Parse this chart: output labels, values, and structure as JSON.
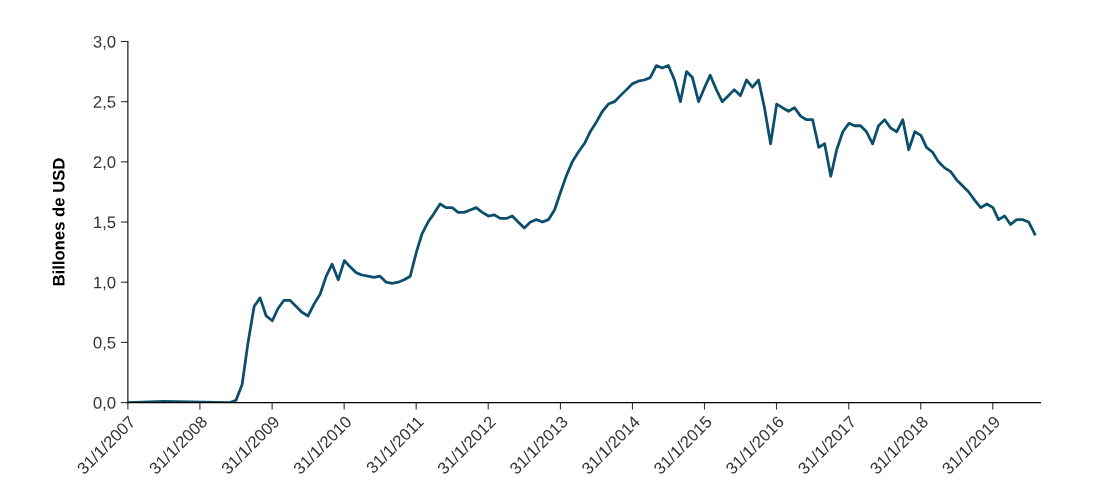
{
  "chart_data": {
    "type": "line",
    "ylabel": "Billones de USD",
    "grid": false,
    "marker": "none",
    "line_style": "solid",
    "xlim": [
      "2007-01-31",
      "2019-09-30"
    ],
    "ylim": [
      0,
      3.0
    ],
    "xticks": [
      {
        "value": "2007-01-31",
        "label": "31/1/2007"
      },
      {
        "value": "2008-01-31",
        "label": "31/1/2008"
      },
      {
        "value": "2009-01-31",
        "label": "31/1/2009"
      },
      {
        "value": "2010-01-31",
        "label": "31/1/2010"
      },
      {
        "value": "2011-01-31",
        "label": "31/1/2011"
      },
      {
        "value": "2012-01-31",
        "label": "31/1/2012"
      },
      {
        "value": "2013-01-31",
        "label": "31/1/2013"
      },
      {
        "value": "2014-01-31",
        "label": "31/1/2014"
      },
      {
        "value": "2015-01-31",
        "label": "31/1/2015"
      },
      {
        "value": "2016-01-31",
        "label": "31/1/2016"
      },
      {
        "value": "2017-01-31",
        "label": "31/1/2017"
      },
      {
        "value": "2018-01-31",
        "label": "31/1/2018"
      },
      {
        "value": "2019-01-31",
        "label": "31/1/2019"
      }
    ],
    "yticks": [
      {
        "value": 0,
        "label": "0,0"
      },
      {
        "value": 0.5,
        "label": "0,5"
      },
      {
        "value": 1.0,
        "label": "1,0"
      },
      {
        "value": 1.5,
        "label": "1,5"
      },
      {
        "value": 2.0,
        "label": "2,0"
      },
      {
        "value": 2.5,
        "label": "2,5"
      },
      {
        "value": 3.0,
        "label": "3,0"
      }
    ],
    "x": [
      "2007-01-31",
      "2007-08",
      "2008-07",
      "2008-08",
      "2008-09",
      "2008-10",
      "2008-11",
      "2008-12",
      "2009-01",
      "2009-02",
      "2009-03",
      "2009-04",
      "2009-05",
      "2009-06",
      "2009-07",
      "2009-08",
      "2009-09",
      "2009-10",
      "2009-11",
      "2009-12",
      "2010-01",
      "2010-02",
      "2010-03",
      "2010-04",
      "2010-05",
      "2010-06",
      "2010-07",
      "2010-08",
      "2010-09",
      "2010-10",
      "2010-11",
      "2010-12",
      "2011-01",
      "2011-02",
      "2011-03",
      "2011-04",
      "2011-05",
      "2011-06",
      "2011-07",
      "2011-08",
      "2011-09",
      "2011-10",
      "2011-11",
      "2011-12",
      "2012-01",
      "2012-02",
      "2012-03",
      "2012-04",
      "2012-05",
      "2012-06",
      "2012-07",
      "2012-08",
      "2012-09",
      "2012-10",
      "2012-11",
      "2012-12",
      "2013-01",
      "2013-02",
      "2013-03",
      "2013-04",
      "2013-05",
      "2013-06",
      "2013-07",
      "2013-08",
      "2013-09",
      "2013-10",
      "2013-11",
      "2013-12",
      "2014-01",
      "2014-02",
      "2014-03",
      "2014-04",
      "2014-05",
      "2014-06",
      "2014-07",
      "2014-08",
      "2014-09",
      "2014-10",
      "2014-11",
      "2014-12",
      "2015-01",
      "2015-02",
      "2015-03",
      "2015-04",
      "2015-05",
      "2015-06",
      "2015-07",
      "2015-08",
      "2015-09",
      "2015-10",
      "2015-11",
      "2015-12",
      "2016-01",
      "2016-02",
      "2016-03",
      "2016-04",
      "2016-05",
      "2016-06",
      "2016-07",
      "2016-08",
      "2016-09",
      "2016-10",
      "2016-11",
      "2016-12",
      "2017-01",
      "2017-02",
      "2017-03",
      "2017-04",
      "2017-05",
      "2017-06",
      "2017-07",
      "2017-08",
      "2017-09",
      "2017-10",
      "2017-11",
      "2017-12",
      "2018-01",
      "2018-02",
      "2018-03",
      "2018-04",
      "2018-05",
      "2018-06",
      "2018-07",
      "2018-08",
      "2018-09",
      "2018-10",
      "2018-11",
      "2018-12",
      "2019-01",
      "2019-02",
      "2019-03",
      "2019-04",
      "2019-05",
      "2019-06",
      "2019-07",
      "2019-08",
      "2019-09"
    ],
    "series": [
      {
        "color": "#0b4f6c",
        "values": [
          0,
          0.01,
          0,
          0.02,
          0.15,
          0.5,
          0.8,
          0.87,
          0.72,
          0.68,
          0.78,
          0.85,
          0.85,
          0.8,
          0.75,
          0.72,
          0.82,
          0.9,
          1.05,
          1.15,
          1.02,
          1.18,
          1.13,
          1.08,
          1.06,
          1.05,
          1.04,
          1.05,
          1.0,
          0.99,
          1.0,
          1.02,
          1.05,
          1.25,
          1.4,
          1.5,
          1.57,
          1.65,
          1.62,
          1.62,
          1.58,
          1.58,
          1.6,
          1.62,
          1.58,
          1.55,
          1.56,
          1.53,
          1.53,
          1.55,
          1.5,
          1.45,
          1.5,
          1.52,
          1.5,
          1.52,
          1.6,
          1.75,
          1.88,
          2.0,
          2.08,
          2.15,
          2.25,
          2.33,
          2.42,
          2.48,
          2.5,
          2.55,
          2.6,
          2.65,
          2.67,
          2.68,
          2.7,
          2.8,
          2.78,
          2.8,
          2.68,
          2.5,
          2.75,
          2.7,
          2.5,
          2.62,
          2.72,
          2.6,
          2.5,
          2.55,
          2.6,
          2.55,
          2.68,
          2.62,
          2.68,
          2.45,
          2.15,
          2.48,
          2.45,
          2.42,
          2.45,
          2.38,
          2.35,
          2.35,
          2.12,
          2.15,
          1.88,
          2.1,
          2.25,
          2.32,
          2.3,
          2.3,
          2.25,
          2.15,
          2.3,
          2.35,
          2.28,
          2.25,
          2.35,
          2.1,
          2.25,
          2.22,
          2.12,
          2.08,
          2.0,
          1.95,
          1.92,
          1.85,
          1.8,
          1.75,
          1.68,
          1.62,
          1.65,
          1.62,
          1.52,
          1.55,
          1.48,
          1.52,
          1.52,
          1.5,
          1.4
        ]
      }
    ]
  }
}
